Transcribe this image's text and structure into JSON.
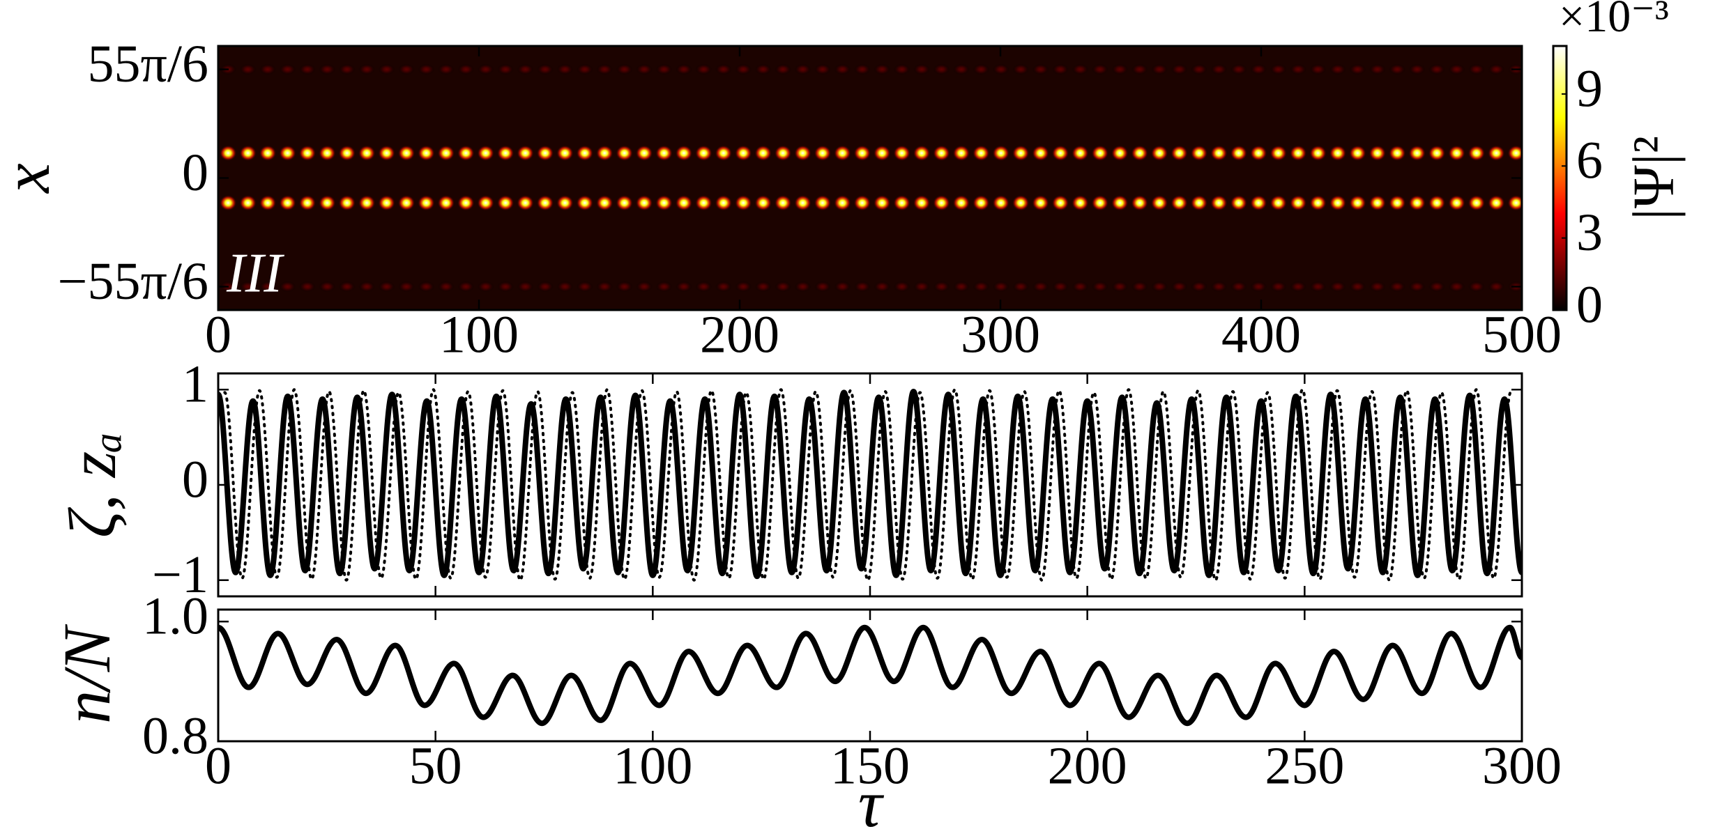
{
  "chart_data": [
    {
      "type": "heatmap",
      "ylabel": "x",
      "annotation": "III",
      "colormap": "hot",
      "xlim": [
        0,
        500
      ],
      "xticks": [
        0,
        100,
        200,
        300,
        400,
        500
      ],
      "ylim": [
        -35,
        35
      ],
      "yticks": [
        {
          "value": -28.8,
          "label": "−55π/6"
        },
        0,
        {
          "value": 28.8,
          "label": "55π/6"
        }
      ],
      "x": [
        3.8,
        11.4,
        19,
        26.6,
        34.2,
        41.8,
        49.4,
        57,
        64.6,
        72.2,
        79.8,
        87.4,
        95,
        102.6,
        110.2,
        117.8,
        125.4,
        133,
        140.6,
        148.2,
        155.8,
        163.4,
        171,
        178.6,
        186.2,
        193.8,
        201.4,
        209,
        216.6,
        224.2,
        231.8,
        239.4,
        247,
        254.6,
        262.2,
        269.8,
        277.4,
        285,
        292.6,
        300.2,
        307.8,
        315.4,
        323,
        330.6,
        338.2,
        345.8,
        353.4,
        361,
        368.6,
        376.2,
        383.8,
        391.4,
        399,
        406.6,
        414.2,
        421.8,
        429.4,
        437,
        444.6,
        452.2,
        459.8,
        467.4,
        475,
        482.6,
        490.2,
        497.8
      ],
      "rows": [
        {
          "y": 28.8,
          "peak": 1.5
        },
        {
          "y": 6.6,
          "peak": 11
        },
        {
          "y": -6.6,
          "peak": 11
        },
        {
          "y": -28.8,
          "peak": 1.5
        }
      ],
      "colorbar": {
        "label": "|Ψ|²",
        "exponent": "×10⁻³",
        "clim": [
          0,
          11
        ],
        "ticks": [
          0,
          3,
          6,
          9
        ]
      }
    },
    {
      "type": "line",
      "ylabel": "ζ, zₐ",
      "sharex": true,
      "xlim": [
        0,
        300
      ],
      "xticks": [
        0,
        50,
        100,
        150,
        200,
        250,
        300
      ],
      "ylim": [
        -1.17,
        1.17
      ],
      "yticks": [
        {
          "value": -1,
          "label": "−1"
        },
        0,
        1
      ],
      "series": [
        {
          "color": "#000000",
          "style": "solid",
          "x": [
            0,
            4,
            8,
            12,
            16,
            20,
            24,
            28,
            32,
            36,
            40,
            44,
            48,
            52,
            56,
            60,
            64,
            68,
            72,
            76,
            80,
            84,
            88,
            92,
            96,
            100,
            104,
            108,
            112,
            116,
            120,
            124,
            128,
            132,
            136,
            140,
            144,
            148,
            152,
            156,
            160,
            164,
            168,
            172,
            176,
            180,
            184,
            188,
            192,
            196,
            200,
            204,
            208,
            212,
            216,
            220,
            224,
            228,
            232,
            236,
            240,
            244,
            248,
            252,
            256,
            260,
            264,
            268,
            272,
            276,
            280,
            284,
            288,
            292,
            296,
            300
          ],
          "values": [
            0.95,
            -0.92,
            0.88,
            -0.95,
            0.93,
            -0.9,
            0.9,
            -0.93,
            0.92,
            -0.88,
            0.95,
            -0.9,
            0.88,
            -0.95,
            0.9,
            -0.92,
            0.93,
            -0.9,
            0.85,
            -0.93,
            0.9,
            -0.88,
            0.92,
            -0.92,
            0.94,
            -0.95,
            0.88,
            -0.9,
            0.9,
            -0.93,
            0.95,
            -0.96,
            0.93,
            -0.92,
            0.9,
            -0.9,
            0.97,
            -0.88,
            0.92,
            -0.95,
            0.98,
            -0.9,
            0.95,
            -0.93,
            0.9,
            -0.95,
            0.93,
            -0.9,
            0.9,
            -0.92,
            0.88,
            -0.88,
            0.92,
            -0.93,
            0.86,
            -0.9,
            0.9,
            -0.95,
            0.92,
            -0.92,
            0.88,
            -0.9,
            0.93,
            -0.93,
            0.95,
            -0.88,
            0.9,
            -0.92,
            0.92,
            -0.95,
            0.9,
            -0.9,
            0.94,
            -0.93,
            0.9,
            -0.92
          ]
        },
        {
          "color": "#000000",
          "style": "dotted",
          "x": [
            1.5,
            5.5,
            9.5,
            13.5,
            17.5,
            21.5,
            25.5,
            29.5,
            33.5,
            37.5,
            41.5,
            45.5,
            49.5,
            53.5,
            57.5,
            61.5,
            65.5,
            69.5,
            73.5,
            77.5,
            81.5,
            85.5,
            89.5,
            93.5,
            97.5,
            101.5,
            105.5,
            109.5,
            113.5,
            117.5,
            121.5,
            125.5,
            129.5,
            133.5,
            137.5,
            141.5,
            145.5,
            149.5,
            153.5,
            157.5,
            161.5,
            165.5,
            169.5,
            173.5,
            177.5,
            181.5,
            185.5,
            189.5,
            193.5,
            197.5,
            201.5,
            205.5,
            209.5,
            213.5,
            217.5,
            221.5,
            225.5,
            229.5,
            233.5,
            237.5,
            241.5,
            245.5,
            249.5,
            253.5,
            257.5,
            261.5,
            265.5,
            269.5,
            273.5,
            277.5,
            281.5,
            285.5,
            289.5,
            293.5,
            297.5
          ],
          "values": [
            0.97,
            -0.98,
            0.99,
            -0.97,
            1.0,
            -0.99,
            0.98,
            -1.0,
            0.99,
            -0.98,
            0.97,
            -0.99,
            1.0,
            -0.98,
            0.98,
            -0.97,
            0.99,
            -1.0,
            0.98,
            -0.99,
            0.97,
            -0.98,
            1.0,
            -0.99,
            0.99,
            -0.97,
            0.98,
            -1.0,
            0.99,
            -0.98,
            0.97,
            -0.99,
            1.0,
            -0.98,
            0.98,
            -0.97,
            0.99,
            -1.0,
            0.98,
            -0.99,
            0.97,
            -0.98,
            1.0,
            -0.99,
            0.99,
            -0.97,
            0.98,
            -1.0,
            0.99,
            -0.98,
            0.97,
            -0.99,
            1.0,
            -0.98,
            0.98,
            -0.97,
            0.99,
            -1.0,
            0.98,
            -0.99,
            0.97,
            -0.98,
            1.0,
            -0.99,
            0.99,
            -0.97,
            0.98,
            -1.0,
            0.99,
            -0.98,
            0.97,
            -0.99,
            1.0,
            -0.98,
            0.98
          ]
        }
      ]
    },
    {
      "type": "line",
      "ylabel": "n/N",
      "xlabel": "τ",
      "xlim": [
        0,
        300
      ],
      "xticks": [
        0,
        50,
        100,
        150,
        200,
        250,
        300
      ],
      "ylim": [
        0.8,
        1.02
      ],
      "yticks": [
        0.8,
        {
          "value": 1,
          "label": "1.0"
        }
      ],
      "series": [
        {
          "color": "#000000",
          "style": "solid",
          "x": [
            0,
            7,
            13.75,
            20.5,
            27.25,
            34,
            40.75,
            47.5,
            54.25,
            61,
            67.75,
            74.5,
            81.25,
            88,
            94.75,
            101.5,
            108.25,
            115,
            121.75,
            128.5,
            135.25,
            142,
            148.75,
            155.5,
            162.25,
            169,
            175.75,
            182.5,
            189.25,
            196,
            202.75,
            209.5,
            216.25,
            223,
            229.75,
            236.5,
            243.25,
            250,
            256.75,
            263.5,
            270.25,
            277,
            283.75,
            290.5,
            297.25,
            300
          ],
          "values": [
            0.99,
            0.89,
            0.98,
            0.895,
            0.97,
            0.88,
            0.96,
            0.86,
            0.93,
            0.84,
            0.91,
            0.83,
            0.91,
            0.835,
            0.93,
            0.86,
            0.95,
            0.88,
            0.96,
            0.89,
            0.98,
            0.9,
            0.99,
            0.9,
            0.99,
            0.89,
            0.97,
            0.88,
            0.95,
            0.86,
            0.93,
            0.84,
            0.91,
            0.83,
            0.91,
            0.84,
            0.93,
            0.86,
            0.95,
            0.87,
            0.96,
            0.88,
            0.98,
            0.89,
            0.99,
            0.94
          ]
        }
      ]
    }
  ]
}
